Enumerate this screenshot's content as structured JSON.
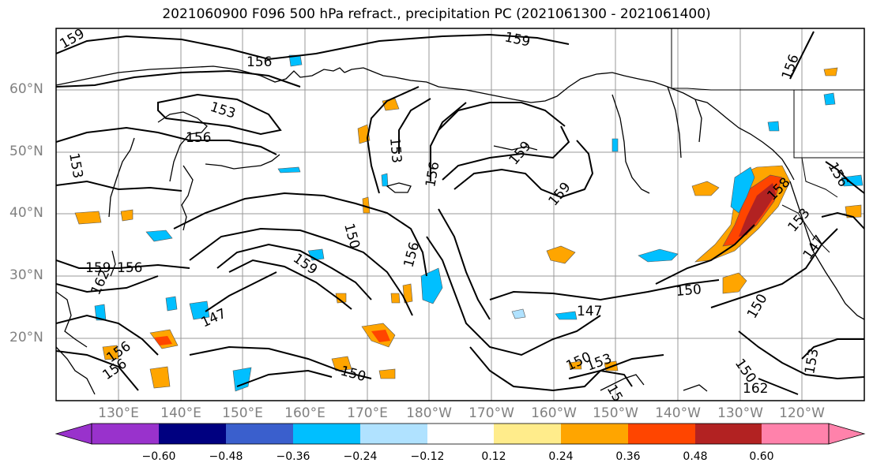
{
  "title": "2021060900 F096 500 hPa refract., precipitation PC (2021061300 - 2021061400)",
  "lat_labels": [
    "60°N",
    "50°N",
    "40°N",
    "30°N",
    "20°N"
  ],
  "lon_labels": [
    "130°E",
    "140°E",
    "150°E",
    "160°E",
    "170°E",
    "180°W",
    "170°W",
    "160°W",
    "150°W",
    "140°W",
    "130°W",
    "120°W"
  ],
  "contour_labels": [
    "159",
    "156",
    "159",
    "156",
    "153",
    "156",
    "153",
    "156",
    "159",
    "159",
    "153",
    "156",
    "150",
    "159",
    "156",
    "162",
    "156",
    "159",
    "147",
    "150",
    "147",
    "150",
    "150",
    "156",
    "153",
    "156",
    "147",
    "150",
    "153",
    "158",
    "153",
    "156",
    "162"
  ],
  "colorbar": {
    "colors": [
      "#9932cc",
      "#000080",
      "#3a5fcd",
      "#00bfff",
      "#b0e2ff",
      "#ffffff",
      "#ffec8b",
      "#ffa500",
      "#ff4500",
      "#b22222",
      "#ff82ab"
    ],
    "ticks": [
      "−0.60",
      "−0.48",
      "−0.36",
      "−0.24",
      "−0.12",
      "0.12",
      "0.24",
      "0.36",
      "0.48",
      "0.60"
    ]
  }
}
